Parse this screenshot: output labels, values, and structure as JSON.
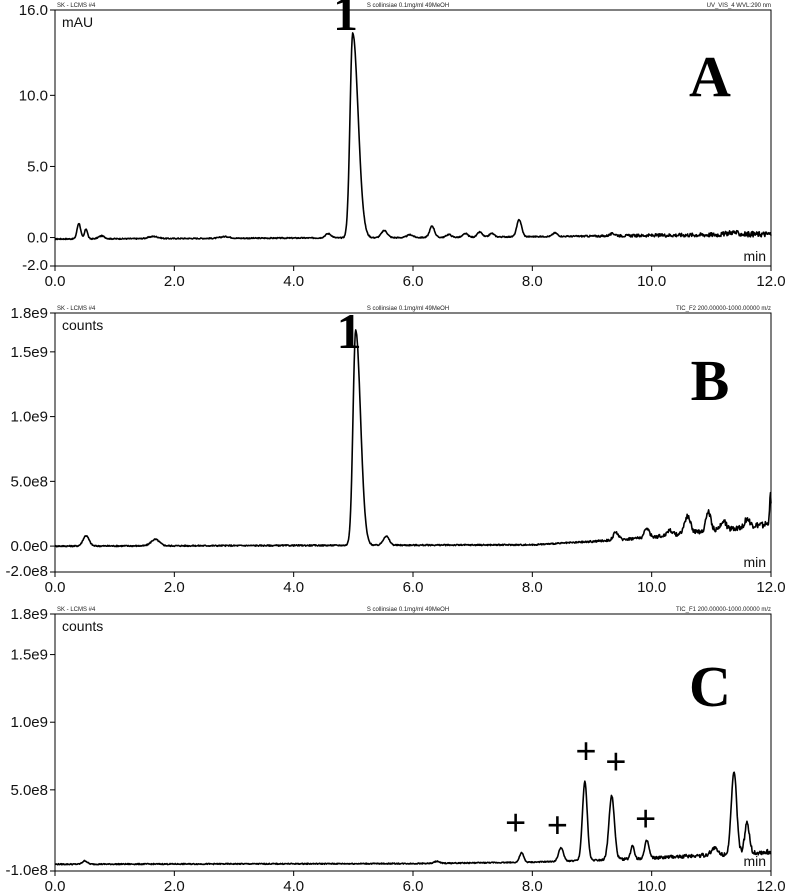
{
  "chart_data": [
    {
      "type": "line",
      "header_left": "SK - LCMS #4",
      "header_center": "S collinsiae 0.1mg/ml 49MeOH",
      "header_right": "UV_VIS_4 WVL:290 nm",
      "ylabel": "mAU",
      "xlabel": "min",
      "panel_label": "A",
      "xlim": [
        0.0,
        12.0
      ],
      "ylim": [
        -2.0,
        16.0
      ],
      "xticks": [
        "0.0",
        "2.0",
        "4.0",
        "6.0",
        "8.0",
        "10.0",
        "12.0"
      ],
      "yticks": [
        {
          "value": 16.0,
          "label": "16.0"
        },
        {
          "value": 10.0,
          "label": "10.0"
        },
        {
          "value": 5.0,
          "label": "5.0"
        },
        {
          "value": 0.0,
          "label": "0.0"
        },
        {
          "value": -2.0,
          "label": "-2.0"
        }
      ],
      "baseline": 0.0,
      "noise": 0.04,
      "drift": [
        [
          0.0,
          -0.1
        ],
        [
          6.0,
          0.0
        ],
        [
          9.0,
          0.1
        ],
        [
          12.0,
          0.25
        ]
      ],
      "peaks": [
        {
          "rt": 0.4,
          "height": 1.1,
          "width": 0.03
        },
        {
          "rt": 0.52,
          "height": 0.7,
          "width": 0.025
        },
        {
          "rt": 0.78,
          "height": 0.2,
          "width": 0.05
        },
        {
          "rt": 1.65,
          "height": 0.15,
          "width": 0.08
        },
        {
          "rt": 2.85,
          "height": 0.12,
          "width": 0.08
        },
        {
          "rt": 4.58,
          "height": 0.3,
          "width": 0.05
        },
        {
          "rt": 4.99,
          "height": 14.4,
          "width": 0.045,
          "tail": 0.09
        },
        {
          "rt": 5.52,
          "height": 0.5,
          "width": 0.05
        },
        {
          "rt": 5.95,
          "height": 0.2,
          "width": 0.05
        },
        {
          "rt": 6.32,
          "height": 0.8,
          "width": 0.04
        },
        {
          "rt": 6.6,
          "height": 0.2,
          "width": 0.04
        },
        {
          "rt": 6.88,
          "height": 0.25,
          "width": 0.04
        },
        {
          "rt": 7.12,
          "height": 0.35,
          "width": 0.04
        },
        {
          "rt": 7.32,
          "height": 0.25,
          "width": 0.04
        },
        {
          "rt": 7.78,
          "height": 1.2,
          "width": 0.04
        },
        {
          "rt": 8.38,
          "height": 0.25,
          "width": 0.04
        },
        {
          "rt": 9.35,
          "height": 0.15,
          "width": 0.05
        },
        {
          "rt": 11.35,
          "height": 0.15,
          "width": 0.08
        }
      ],
      "annotations": [
        {
          "text": "1",
          "x": 4.66,
          "y": 14.6
        }
      ]
    },
    {
      "type": "line",
      "header_left": "SK - LCMS #4",
      "header_center": "S collinsiae 0.1mg/ml 49MeOH",
      "header_right": "TIC_F2 200.00000-1000.00000  m/z",
      "ylabel": "counts",
      "xlabel": "min",
      "panel_label": "B",
      "xlim": [
        0.0,
        12.0
      ],
      "ylim": [
        -200000000,
        1800000000
      ],
      "xticks": [
        "0.0",
        "2.0",
        "4.0",
        "6.0",
        "8.0",
        "10.0",
        "12.0"
      ],
      "yticks": [
        {
          "value": 1800000000,
          "label": "1.8e9"
        },
        {
          "value": 1500000000,
          "label": "1.5e9"
        },
        {
          "value": 1000000000,
          "label": "1.0e9"
        },
        {
          "value": 500000000,
          "label": "5.0e8"
        },
        {
          "value": 0,
          "label": "0.0e0"
        },
        {
          "value": -200000000,
          "label": "-2.0e8"
        }
      ],
      "baseline": 0,
      "noise": 5000000,
      "drift": [
        [
          0.0,
          0
        ],
        [
          8.0,
          10000000
        ],
        [
          9.0,
          35000000
        ],
        [
          10.0,
          70000000
        ],
        [
          11.0,
          120000000
        ],
        [
          12.0,
          170000000
        ]
      ],
      "peaks": [
        {
          "rt": 0.52,
          "height": 80000000,
          "width": 0.05
        },
        {
          "rt": 1.68,
          "height": 50000000,
          "width": 0.07
        },
        {
          "rt": 5.04,
          "height": 1660000000,
          "width": 0.045,
          "tail": 0.08
        },
        {
          "rt": 5.55,
          "height": 70000000,
          "width": 0.05
        },
        {
          "rt": 9.4,
          "height": 60000000,
          "width": 0.04
        },
        {
          "rt": 9.92,
          "height": 70000000,
          "width": 0.04
        },
        {
          "rt": 10.3,
          "height": 40000000,
          "width": 0.04
        },
        {
          "rt": 10.6,
          "height": 130000000,
          "width": 0.05
        },
        {
          "rt": 10.95,
          "height": 150000000,
          "width": 0.04
        },
        {
          "rt": 11.2,
          "height": 70000000,
          "width": 0.04
        },
        {
          "rt": 11.6,
          "height": 60000000,
          "width": 0.04
        },
        {
          "rt": 11.99,
          "height": 220000000,
          "width": 0.015
        }
      ],
      "annotations": [
        {
          "text": "1",
          "x": 4.72,
          "y": 1530000000
        }
      ]
    },
    {
      "type": "line",
      "header_left": "SK - LCMS #4",
      "header_center": "S collinsiae 0.1mg/ml 49MeOH",
      "header_right": "TIC_F1 200.00000-1000.00000  m/z",
      "ylabel": "counts",
      "xlabel": "min",
      "panel_label": "C",
      "xlim": [
        0.0,
        12.0
      ],
      "ylim": [
        -100000000,
        1800000000
      ],
      "xticks": [
        "0.0",
        "2.0",
        "4.0",
        "6.0",
        "8.0",
        "10.0",
        "12.0"
      ],
      "yticks": [
        {
          "value": 1800000000,
          "label": "1.8e9"
        },
        {
          "value": 1500000000,
          "label": "1.5e9"
        },
        {
          "value": 1000000000,
          "label": "1.0e9"
        },
        {
          "value": 500000000,
          "label": "5.0e8"
        },
        {
          "value": -100000000,
          "label": "-1.0e8"
        }
      ],
      "baseline": -50000000,
      "noise": 4000000,
      "drift": [
        [
          0.0,
          0
        ],
        [
          6.0,
          5000000
        ],
        [
          8.0,
          15000000
        ],
        [
          9.0,
          30000000
        ],
        [
          10.0,
          45000000
        ],
        [
          11.0,
          70000000
        ],
        [
          12.0,
          90000000
        ]
      ],
      "peaks": [
        {
          "rt": 0.5,
          "height": 25000000,
          "width": 0.04
        },
        {
          "rt": 6.4,
          "height": 15000000,
          "width": 0.04
        },
        {
          "rt": 7.82,
          "height": 70000000,
          "width": 0.035
        },
        {
          "rt": 8.48,
          "height": 100000000,
          "width": 0.04
        },
        {
          "rt": 8.88,
          "height": 580000000,
          "width": 0.04
        },
        {
          "rt": 9.33,
          "height": 470000000,
          "width": 0.045
        },
        {
          "rt": 9.68,
          "height": 100000000,
          "width": 0.03
        },
        {
          "rt": 9.92,
          "height": 130000000,
          "width": 0.035
        },
        {
          "rt": 11.05,
          "height": 50000000,
          "width": 0.05
        },
        {
          "rt": 11.38,
          "height": 600000000,
          "width": 0.045
        },
        {
          "rt": 11.6,
          "height": 220000000,
          "width": 0.04
        }
      ],
      "annotations": [
        {
          "text": "+",
          "x": 7.72,
          "y": 170000000
        },
        {
          "text": "+",
          "x": 8.42,
          "y": 150000000
        },
        {
          "text": "+",
          "x": 8.9,
          "y": 700000000
        },
        {
          "text": "+",
          "x": 9.4,
          "y": 620000000
        },
        {
          "text": "+",
          "x": 9.9,
          "y": 200000000
        }
      ]
    }
  ]
}
